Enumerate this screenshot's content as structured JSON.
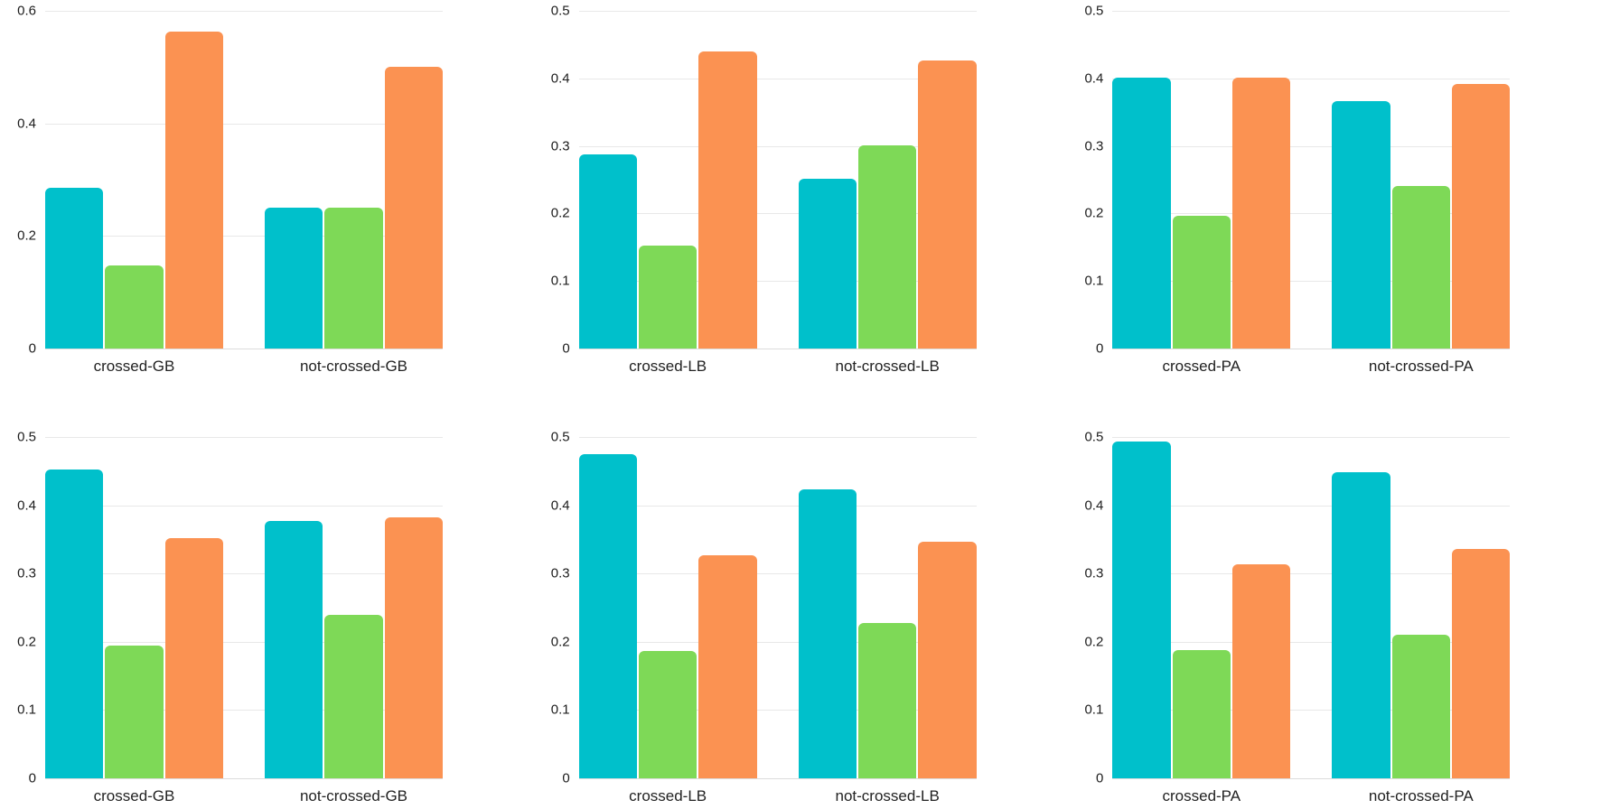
{
  "figure": {
    "background": "#ffffff",
    "grid_rows": 2,
    "grid_cols": 3,
    "legend": "none",
    "title": ""
  },
  "palette": {
    "teal": "#00c0cb",
    "green": "#7ed957",
    "orange": "#fb9252",
    "gridline": "#e8e8e8",
    "baseline": "#dcdcdc",
    "text": "#1c1c1c"
  },
  "chart_data": [
    {
      "id": "top-left-GB",
      "type": "bar",
      "title": "",
      "xlabel": "",
      "ylabel": "",
      "categories": [
        "crossed-GB",
        "not-crossed-GB"
      ],
      "series": [
        {
          "name": "teal",
          "color_key": "teal",
          "values": [
            0.285,
            0.25
          ]
        },
        {
          "name": "green",
          "color_key": "green",
          "values": [
            0.148,
            0.25
          ]
        },
        {
          "name": "orange",
          "color_key": "orange",
          "values": [
            0.563,
            0.5
          ]
        }
      ],
      "ylim": [
        0,
        0.6
      ],
      "yticks": [
        0,
        0.2,
        0.4,
        0.6
      ],
      "grid": true,
      "legend_position": "none"
    },
    {
      "id": "top-middle-LB",
      "type": "bar",
      "title": "",
      "xlabel": "",
      "ylabel": "",
      "categories": [
        "crossed-LB",
        "not-crossed-LB"
      ],
      "series": [
        {
          "name": "teal",
          "color_key": "teal",
          "values": [
            0.288,
            0.251
          ]
        },
        {
          "name": "green",
          "color_key": "green",
          "values": [
            0.152,
            0.301
          ]
        },
        {
          "name": "orange",
          "color_key": "orange",
          "values": [
            0.44,
            0.427
          ]
        }
      ],
      "ylim": [
        0,
        0.5
      ],
      "yticks": [
        0,
        0.1,
        0.2,
        0.3,
        0.4,
        0.5
      ],
      "grid": true,
      "legend_position": "none"
    },
    {
      "id": "top-right-PA",
      "type": "bar",
      "title": "",
      "xlabel": "",
      "ylabel": "",
      "categories": [
        "crossed-PA",
        "not-crossed-PA"
      ],
      "series": [
        {
          "name": "teal",
          "color_key": "teal",
          "values": [
            0.401,
            0.366
          ]
        },
        {
          "name": "green",
          "color_key": "green",
          "values": [
            0.197,
            0.24
          ]
        },
        {
          "name": "orange",
          "color_key": "orange",
          "values": [
            0.401,
            0.392
          ]
        }
      ],
      "ylim": [
        0,
        0.5
      ],
      "yticks": [
        0,
        0.1,
        0.2,
        0.3,
        0.4,
        0.5
      ],
      "grid": true,
      "legend_position": "none"
    },
    {
      "id": "bottom-left-GB",
      "type": "bar",
      "title": "",
      "xlabel": "",
      "ylabel": "",
      "categories": [
        "crossed-GB",
        "not-crossed-GB"
      ],
      "series": [
        {
          "name": "teal",
          "color_key": "teal",
          "values": [
            0.452,
            0.377
          ]
        },
        {
          "name": "green",
          "color_key": "green",
          "values": [
            0.194,
            0.239
          ]
        },
        {
          "name": "orange",
          "color_key": "orange",
          "values": [
            0.352,
            0.382
          ]
        }
      ],
      "ylim": [
        0,
        0.5
      ],
      "yticks": [
        0,
        0.1,
        0.2,
        0.3,
        0.4,
        0.5
      ],
      "grid": true,
      "legend_position": "none"
    },
    {
      "id": "bottom-middle-LB",
      "type": "bar",
      "title": "",
      "xlabel": "",
      "ylabel": "",
      "categories": [
        "crossed-LB",
        "not-crossed-LB"
      ],
      "series": [
        {
          "name": "teal",
          "color_key": "teal",
          "values": [
            0.475,
            0.423
          ]
        },
        {
          "name": "green",
          "color_key": "green",
          "values": [
            0.186,
            0.227
          ]
        },
        {
          "name": "orange",
          "color_key": "orange",
          "values": [
            0.327,
            0.347
          ]
        }
      ],
      "ylim": [
        0,
        0.5
      ],
      "yticks": [
        0,
        0.1,
        0.2,
        0.3,
        0.4,
        0.5
      ],
      "grid": true,
      "legend_position": "none"
    },
    {
      "id": "bottom-right-PA",
      "type": "bar",
      "title": "",
      "xlabel": "",
      "ylabel": "",
      "categories": [
        "crossed-PA",
        "not-crossed-PA"
      ],
      "series": [
        {
          "name": "teal",
          "color_key": "teal",
          "values": [
            0.493,
            0.449
          ]
        },
        {
          "name": "green",
          "color_key": "green",
          "values": [
            0.188,
            0.21
          ]
        },
        {
          "name": "orange",
          "color_key": "orange",
          "values": [
            0.313,
            0.336
          ]
        }
      ],
      "ylim": [
        0,
        0.5
      ],
      "yticks": [
        0,
        0.1,
        0.2,
        0.3,
        0.4,
        0.5
      ],
      "grid": true,
      "legend_position": "none"
    }
  ]
}
